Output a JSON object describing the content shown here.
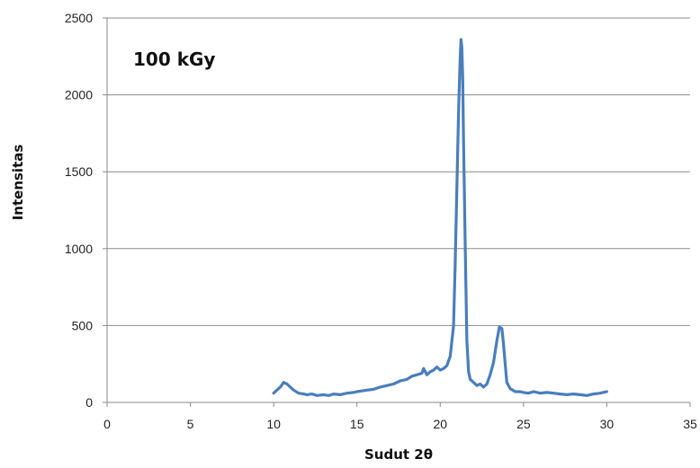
{
  "chart_data": {
    "type": "line",
    "title": "",
    "xlabel": "Sudut 2θ",
    "ylabel": "Intensitas",
    "annotation": "100 kGy",
    "xlim": [
      0,
      35
    ],
    "ylim": [
      0,
      2500
    ],
    "xticks": [
      0,
      5,
      10,
      15,
      20,
      25,
      30,
      35
    ],
    "yticks": [
      0,
      500,
      1000,
      1500,
      2000,
      2500
    ],
    "grid": "horizontal",
    "legend": "none",
    "line_color": "#4a7ebb",
    "series": [
      {
        "values_x": [
          10.0,
          10.2,
          10.4,
          10.6,
          10.8,
          11.0,
          11.2,
          11.5,
          11.8,
          12.0,
          12.3,
          12.6,
          13.0,
          13.3,
          13.6,
          14.0,
          14.4,
          14.8,
          15.0,
          15.3,
          15.6,
          16.0,
          16.4,
          16.8,
          17.2,
          17.6,
          18.0,
          18.3,
          18.6,
          18.9,
          19.0,
          19.2,
          19.4,
          19.6,
          19.8,
          20.0,
          20.2,
          20.4,
          20.6,
          20.8,
          20.9,
          21.0,
          21.1,
          21.2,
          21.25,
          21.3,
          21.35,
          21.4,
          21.5,
          21.6,
          21.7,
          21.8,
          22.0,
          22.2,
          22.4,
          22.6,
          22.8,
          23.0,
          23.2,
          23.4,
          23.55,
          23.7,
          23.8,
          23.9,
          24.0,
          24.2,
          24.5,
          24.8,
          25.0,
          25.3,
          25.6,
          26.0,
          26.4,
          26.8,
          27.2,
          27.6,
          28.0,
          28.4,
          28.8,
          29.2,
          29.6,
          30.0
        ],
        "values_y": [
          60,
          80,
          100,
          130,
          120,
          100,
          80,
          60,
          55,
          50,
          55,
          45,
          50,
          45,
          55,
          50,
          60,
          65,
          70,
          75,
          80,
          85,
          100,
          110,
          120,
          140,
          150,
          170,
          180,
          190,
          220,
          180,
          200,
          210,
          230,
          210,
          220,
          240,
          300,
          500,
          900,
          1400,
          1900,
          2250,
          2360,
          2300,
          2100,
          1700,
          1000,
          400,
          200,
          150,
          130,
          110,
          120,
          100,
          120,
          180,
          260,
          400,
          490,
          480,
          380,
          250,
          130,
          90,
          70,
          70,
          65,
          60,
          70,
          60,
          65,
          60,
          55,
          50,
          55,
          50,
          45,
          55,
          60,
          70
        ]
      }
    ]
  }
}
